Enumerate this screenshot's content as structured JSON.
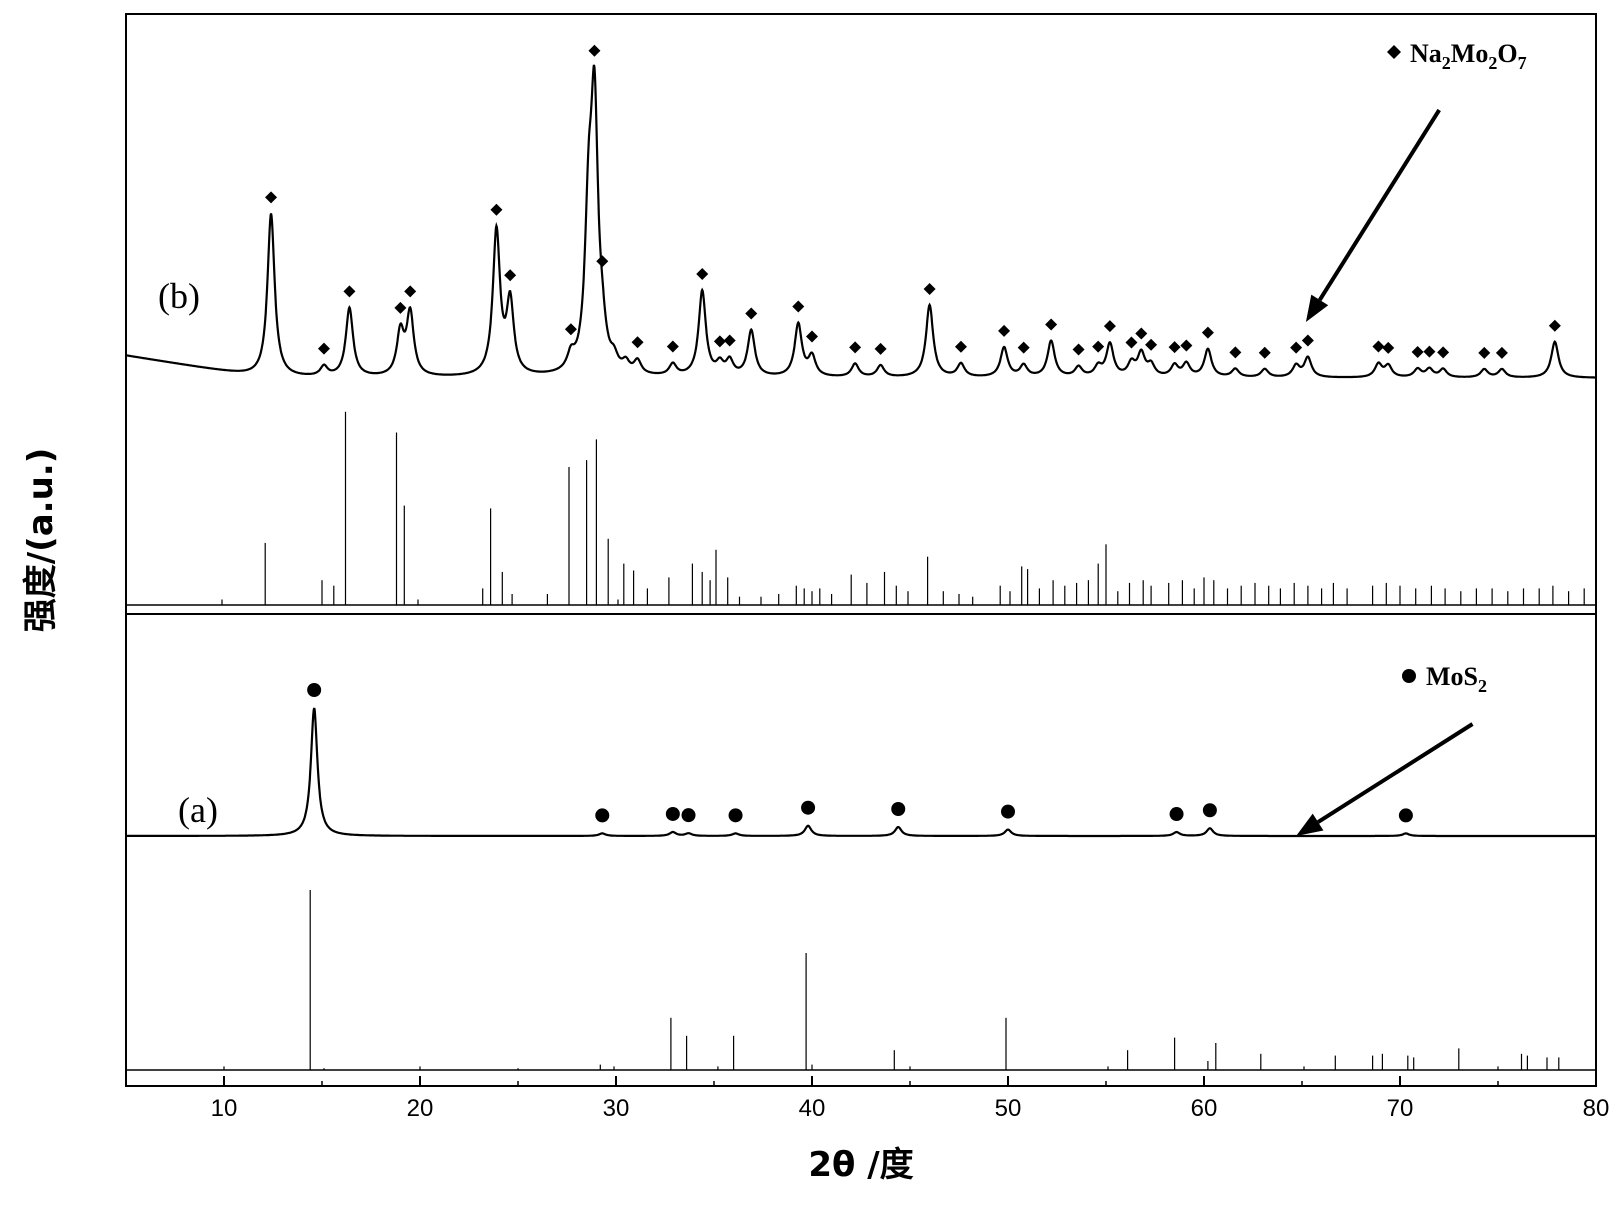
{
  "chart_data": {
    "type": "line",
    "xlabel": "2θ /度",
    "ylabel": "强度/(a.u.)",
    "xlim": [
      5,
      80
    ],
    "x_ticks": [
      10,
      20,
      30,
      40,
      50,
      60,
      70,
      80
    ],
    "legend": [
      {
        "marker": "diamond",
        "formula": "Na",
        "subs": [
          "Na",
          "2",
          "Mo",
          "2",
          "O",
          "7"
        ]
      },
      {
        "marker": "circle",
        "formula": "MoS2",
        "subs": [
          "MoS",
          "2"
        ]
      }
    ],
    "legend_text": {
      "na2mo2o7": "Na2Mo2O7",
      "mos2": "MoS2"
    },
    "panels": [
      {
        "label": "(b)",
        "phase": "Na2Mo2O7",
        "marker": "diamond",
        "baseline_intensity": 0,
        "background_start": 20,
        "peaks": [
          {
            "x": 12.4,
            "h": 100,
            "marked": true
          },
          {
            "x": 15.1,
            "h": 6,
            "marked": true
          },
          {
            "x": 16.4,
            "h": 42,
            "marked": true
          },
          {
            "x": 19.0,
            "h": 26,
            "marked": true
          },
          {
            "x": 19.5,
            "h": 38,
            "marked": true
          },
          {
            "x": 23.9,
            "h": 88,
            "marked": true
          },
          {
            "x": 24.6,
            "h": 44,
            "marked": true
          },
          {
            "x": 27.7,
            "h": 9,
            "marked": true
          },
          {
            "x": 28.6,
            "h": 85,
            "marked": false
          },
          {
            "x": 28.9,
            "h": 155,
            "marked": true
          },
          {
            "x": 29.3,
            "h": 16,
            "marked": true
          },
          {
            "x": 29.9,
            "h": 7,
            "marked": false
          },
          {
            "x": 30.5,
            "h": 6,
            "marked": false
          },
          {
            "x": 31.1,
            "h": 8,
            "marked": true
          },
          {
            "x": 32.9,
            "h": 7,
            "marked": true
          },
          {
            "x": 34.4,
            "h": 52,
            "marked": true
          },
          {
            "x": 35.3,
            "h": 7,
            "marked": true
          },
          {
            "x": 35.8,
            "h": 9,
            "marked": true
          },
          {
            "x": 36.9,
            "h": 28,
            "marked": true
          },
          {
            "x": 39.3,
            "h": 32,
            "marked": true
          },
          {
            "x": 40.0,
            "h": 12,
            "marked": true
          },
          {
            "x": 42.2,
            "h": 8,
            "marked": true
          },
          {
            "x": 43.5,
            "h": 7,
            "marked": true
          },
          {
            "x": 46.0,
            "h": 44,
            "marked": true
          },
          {
            "x": 47.6,
            "h": 8,
            "marked": true
          },
          {
            "x": 49.8,
            "h": 18,
            "marked": true
          },
          {
            "x": 50.8,
            "h": 7,
            "marked": true
          },
          {
            "x": 52.2,
            "h": 22,
            "marked": true
          },
          {
            "x": 53.6,
            "h": 6,
            "marked": true
          },
          {
            "x": 54.6,
            "h": 6,
            "marked": true
          },
          {
            "x": 55.2,
            "h": 20,
            "marked": true
          },
          {
            "x": 56.3,
            "h": 8,
            "marked": true
          },
          {
            "x": 56.8,
            "h": 14,
            "marked": true
          },
          {
            "x": 57.3,
            "h": 7,
            "marked": true
          },
          {
            "x": 58.5,
            "h": 7,
            "marked": true
          },
          {
            "x": 59.1,
            "h": 8,
            "marked": true
          },
          {
            "x": 60.2,
            "h": 17,
            "marked": true
          },
          {
            "x": 61.6,
            "h": 5,
            "marked": true
          },
          {
            "x": 63.1,
            "h": 5,
            "marked": true
          },
          {
            "x": 64.7,
            "h": 7,
            "marked": true
          },
          {
            "x": 65.3,
            "h": 12,
            "marked": true
          },
          {
            "x": 68.9,
            "h": 8,
            "marked": true
          },
          {
            "x": 69.4,
            "h": 7,
            "marked": true
          },
          {
            "x": 70.9,
            "h": 5,
            "marked": true
          },
          {
            "x": 71.5,
            "h": 5,
            "marked": true
          },
          {
            "x": 72.2,
            "h": 5,
            "marked": true
          },
          {
            "x": 74.3,
            "h": 5,
            "marked": true
          },
          {
            "x": 75.2,
            "h": 5,
            "marked": true
          },
          {
            "x": 77.9,
            "h": 22,
            "marked": true
          }
        ],
        "reference": [
          {
            "x": 9.9,
            "h": 4
          },
          {
            "x": 12.1,
            "h": 45
          },
          {
            "x": 15.0,
            "h": 18
          },
          {
            "x": 15.6,
            "h": 14
          },
          {
            "x": 16.2,
            "h": 140
          },
          {
            "x": 18.8,
            "h": 125
          },
          {
            "x": 19.2,
            "h": 72
          },
          {
            "x": 19.9,
            "h": 4
          },
          {
            "x": 23.2,
            "h": 12
          },
          {
            "x": 23.6,
            "h": 70
          },
          {
            "x": 24.2,
            "h": 24
          },
          {
            "x": 24.7,
            "h": 8
          },
          {
            "x": 26.5,
            "h": 8
          },
          {
            "x": 27.6,
            "h": 100
          },
          {
            "x": 28.5,
            "h": 105
          },
          {
            "x": 29.0,
            "h": 120
          },
          {
            "x": 29.6,
            "h": 48
          },
          {
            "x": 30.1,
            "h": 4
          },
          {
            "x": 30.4,
            "h": 30
          },
          {
            "x": 30.9,
            "h": 25
          },
          {
            "x": 31.6,
            "h": 12
          },
          {
            "x": 32.7,
            "h": 20
          },
          {
            "x": 33.9,
            "h": 30
          },
          {
            "x": 34.4,
            "h": 24
          },
          {
            "x": 34.8,
            "h": 18
          },
          {
            "x": 35.1,
            "h": 40
          },
          {
            "x": 35.7,
            "h": 20
          },
          {
            "x": 36.3,
            "h": 6
          },
          {
            "x": 37.4,
            "h": 6
          },
          {
            "x": 38.3,
            "h": 8
          },
          {
            "x": 39.2,
            "h": 14
          },
          {
            "x": 39.6,
            "h": 12
          },
          {
            "x": 40.0,
            "h": 10
          },
          {
            "x": 40.4,
            "h": 12
          },
          {
            "x": 41.0,
            "h": 8
          },
          {
            "x": 42.0,
            "h": 22
          },
          {
            "x": 42.8,
            "h": 16
          },
          {
            "x": 43.7,
            "h": 24
          },
          {
            "x": 44.3,
            "h": 14
          },
          {
            "x": 44.9,
            "h": 10
          },
          {
            "x": 45.9,
            "h": 35
          },
          {
            "x": 46.7,
            "h": 10
          },
          {
            "x": 47.5,
            "h": 8
          },
          {
            "x": 48.2,
            "h": 6
          },
          {
            "x": 49.6,
            "h": 14
          },
          {
            "x": 50.1,
            "h": 10
          },
          {
            "x": 50.7,
            "h": 28
          },
          {
            "x": 51.0,
            "h": 26
          },
          {
            "x": 51.6,
            "h": 12
          },
          {
            "x": 52.3,
            "h": 18
          },
          {
            "x": 52.9,
            "h": 14
          },
          {
            "x": 53.5,
            "h": 16
          },
          {
            "x": 54.1,
            "h": 18
          },
          {
            "x": 54.6,
            "h": 30
          },
          {
            "x": 55.0,
            "h": 44
          },
          {
            "x": 55.6,
            "h": 10
          },
          {
            "x": 56.2,
            "h": 16
          },
          {
            "x": 56.9,
            "h": 18
          },
          {
            "x": 57.3,
            "h": 14
          },
          {
            "x": 58.2,
            "h": 16
          },
          {
            "x": 58.9,
            "h": 18
          },
          {
            "x": 59.5,
            "h": 12
          },
          {
            "x": 60.0,
            "h": 20
          },
          {
            "x": 60.5,
            "h": 18
          },
          {
            "x": 61.2,
            "h": 12
          },
          {
            "x": 61.9,
            "h": 14
          },
          {
            "x": 62.6,
            "h": 16
          },
          {
            "x": 63.3,
            "h": 14
          },
          {
            "x": 63.9,
            "h": 12
          },
          {
            "x": 64.6,
            "h": 16
          },
          {
            "x": 65.3,
            "h": 14
          },
          {
            "x": 66.0,
            "h": 12
          },
          {
            "x": 66.6,
            "h": 16
          },
          {
            "x": 67.3,
            "h": 12
          },
          {
            "x": 68.6,
            "h": 14
          },
          {
            "x": 69.3,
            "h": 16
          },
          {
            "x": 70.0,
            "h": 14
          },
          {
            "x": 70.8,
            "h": 12
          },
          {
            "x": 71.6,
            "h": 14
          },
          {
            "x": 72.3,
            "h": 12
          },
          {
            "x": 73.1,
            "h": 10
          },
          {
            "x": 73.9,
            "h": 12
          },
          {
            "x": 74.7,
            "h": 12
          },
          {
            "x": 75.5,
            "h": 10
          },
          {
            "x": 76.3,
            "h": 12
          },
          {
            "x": 77.1,
            "h": 12
          },
          {
            "x": 77.8,
            "h": 14
          },
          {
            "x": 78.6,
            "h": 10
          },
          {
            "x": 79.4,
            "h": 12
          }
        ]
      },
      {
        "label": "(a)",
        "phase": "MoS2",
        "marker": "circle",
        "peaks": [
          {
            "x": 14.6,
            "h": 100,
            "marked": true
          },
          {
            "x": 29.3,
            "h": 2,
            "marked": true
          },
          {
            "x": 32.9,
            "h": 3,
            "marked": true
          },
          {
            "x": 33.7,
            "h": 2,
            "marked": true
          },
          {
            "x": 36.1,
            "h": 2,
            "marked": true
          },
          {
            "x": 39.8,
            "h": 8,
            "marked": true
          },
          {
            "x": 44.4,
            "h": 7,
            "marked": true
          },
          {
            "x": 50.0,
            "h": 5,
            "marked": true
          },
          {
            "x": 58.6,
            "h": 3,
            "marked": true
          },
          {
            "x": 60.3,
            "h": 6,
            "marked": true
          },
          {
            "x": 70.3,
            "h": 2,
            "marked": true
          }
        ],
        "reference": [
          {
            "x": 10.0,
            "h": 2
          },
          {
            "x": 14.4,
            "h": 100
          },
          {
            "x": 15.1,
            "h": 1
          },
          {
            "x": 20.0,
            "h": 2
          },
          {
            "x": 25.0,
            "h": 1
          },
          {
            "x": 29.2,
            "h": 3
          },
          {
            "x": 29.9,
            "h": 2
          },
          {
            "x": 32.8,
            "h": 29
          },
          {
            "x": 33.6,
            "h": 19
          },
          {
            "x": 35.2,
            "h": 2
          },
          {
            "x": 36.0,
            "h": 19
          },
          {
            "x": 39.7,
            "h": 65
          },
          {
            "x": 40.0,
            "h": 3
          },
          {
            "x": 44.2,
            "h": 11
          },
          {
            "x": 45.0,
            "h": 2
          },
          {
            "x": 49.9,
            "h": 29
          },
          {
            "x": 55.1,
            "h": 2
          },
          {
            "x": 56.1,
            "h": 11
          },
          {
            "x": 58.5,
            "h": 18
          },
          {
            "x": 60.2,
            "h": 5
          },
          {
            "x": 60.6,
            "h": 15
          },
          {
            "x": 62.9,
            "h": 9
          },
          {
            "x": 65.1,
            "h": 2
          },
          {
            "x": 66.7,
            "h": 8
          },
          {
            "x": 68.6,
            "h": 8
          },
          {
            "x": 69.1,
            "h": 9
          },
          {
            "x": 70.4,
            "h": 8
          },
          {
            "x": 70.7,
            "h": 7
          },
          {
            "x": 73.0,
            "h": 12
          },
          {
            "x": 75.0,
            "h": 2
          },
          {
            "x": 76.2,
            "h": 9
          },
          {
            "x": 76.5,
            "h": 8
          },
          {
            "x": 77.5,
            "h": 7
          },
          {
            "x": 78.1,
            "h": 7
          }
        ]
      }
    ],
    "annotations": [
      {
        "type": "arrow",
        "panel": "(b)",
        "from_x": 72.0,
        "to_x": 65.2
      },
      {
        "type": "arrow",
        "panel": "(a)",
        "from_x": 73.7,
        "to_x": 64.7
      }
    ],
    "grid": false,
    "legend_placement": "top-right"
  }
}
